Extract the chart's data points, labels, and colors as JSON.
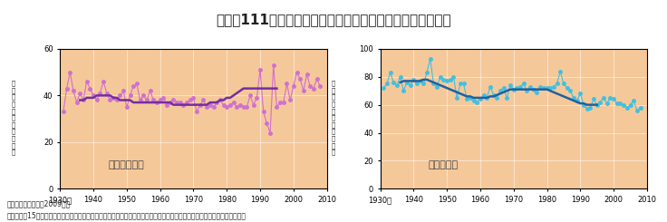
{
  "title": "図３－111　我が国における真夏日等の年間日数の経年変化",
  "title_bg": "#f4a0a0",
  "plot_bg": "#f5c89a",
  "fig_bg": "#ffffff",
  "left_label": "真夏日の日数",
  "right_label": "冬日の日数",
  "ylabel": "１\n地\n点\n当\n た\n り\n の\n 年\n 間\n 日\n 数",
  "left_ylim": [
    0,
    60
  ],
  "left_yticks": [
    0,
    20,
    40,
    60
  ],
  "right_ylim": [
    0,
    100
  ],
  "right_yticks": [
    0,
    20,
    40,
    60,
    80,
    100
  ],
  "xlim": [
    1930,
    2010
  ],
  "xticks": [
    1930,
    1940,
    1950,
    1960,
    1970,
    1980,
    1990,
    2000,
    2010
  ],
  "xtick_labels": [
    "1930年",
    "1940",
    "1950",
    "1960",
    "1970",
    "1980",
    "1990",
    "2000",
    "2010"
  ],
  "source_text": "資料：気象庁調べ（2009年）\n　注：国内15地点（網走、根室、寿都、山形、石巻、伏木、長野、水戸、銚子、境、浜田、彦根、多度津、名瀬、石垣島）の\n　　　出現日数から求めた１地点当たりの年間日数。細線は年々の値を、太線は11年移動平均値。",
  "summer_years": [
    1931,
    1932,
    1933,
    1934,
    1935,
    1936,
    1937,
    1938,
    1939,
    1940,
    1941,
    1942,
    1943,
    1944,
    1945,
    1946,
    1947,
    1948,
    1949,
    1950,
    1951,
    1952,
    1953,
    1954,
    1955,
    1956,
    1957,
    1958,
    1959,
    1960,
    1961,
    1962,
    1963,
    1964,
    1965,
    1966,
    1967,
    1968,
    1969,
    1970,
    1971,
    1972,
    1973,
    1974,
    1975,
    1976,
    1977,
    1978,
    1979,
    1980,
    1981,
    1982,
    1983,
    1984,
    1985,
    1986,
    1987,
    1988,
    1989,
    1990,
    1991,
    1992,
    1993,
    1994,
    1995,
    1996,
    1997,
    1998,
    1999,
    2000,
    2001,
    2002,
    2003,
    2004,
    2005,
    2006,
    2007,
    2008
  ],
  "summer_values": [
    33,
    43,
    50,
    42,
    37,
    41,
    38,
    46,
    43,
    40,
    38,
    41,
    46,
    41,
    38,
    39,
    38,
    40,
    42,
    35,
    40,
    44,
    45,
    38,
    40,
    38,
    42,
    38,
    37,
    38,
    39,
    36,
    37,
    38,
    37,
    37,
    36,
    37,
    38,
    39,
    33,
    36,
    38,
    35,
    36,
    35,
    37,
    38,
    36,
    35,
    36,
    37,
    35,
    36,
    35,
    35,
    40,
    36,
    39,
    51,
    33,
    28,
    24,
    53,
    35,
    37,
    37,
    45,
    38,
    44,
    50,
    47,
    42,
    49,
    44,
    43,
    47,
    44
  ],
  "summer_smooth": [
    38,
    38,
    39,
    39,
    39,
    40,
    40,
    40,
    40,
    40,
    39,
    39,
    38,
    38,
    38,
    38,
    37,
    37,
    37,
    37,
    37,
    37,
    37,
    37,
    37,
    37,
    37,
    37,
    36,
    36,
    36,
    36,
    36,
    36,
    36,
    36,
    36,
    36,
    36,
    37,
    37,
    37,
    38,
    38,
    39,
    39,
    40,
    41,
    42,
    43,
    43,
    43,
    43,
    43,
    43,
    43,
    43,
    43,
    43,
    43
  ],
  "winter_years": [
    1931,
    1932,
    1933,
    1934,
    1935,
    1936,
    1937,
    1938,
    1939,
    1940,
    1941,
    1942,
    1943,
    1944,
    1945,
    1946,
    1947,
    1948,
    1949,
    1950,
    1951,
    1952,
    1953,
    1954,
    1955,
    1956,
    1957,
    1958,
    1959,
    1960,
    1961,
    1962,
    1963,
    1964,
    1965,
    1966,
    1967,
    1968,
    1969,
    1970,
    1971,
    1972,
    1973,
    1974,
    1975,
    1976,
    1977,
    1978,
    1979,
    1980,
    1981,
    1982,
    1983,
    1984,
    1985,
    1986,
    1987,
    1988,
    1989,
    1990,
    1991,
    1992,
    1993,
    1994,
    1995,
    1996,
    1997,
    1998,
    1999,
    2000,
    2001,
    2002,
    2003,
    2004,
    2005,
    2006,
    2007,
    2008
  ],
  "winter_values": [
    72,
    75,
    83,
    76,
    74,
    80,
    70,
    76,
    74,
    78,
    75,
    77,
    75,
    83,
    93,
    75,
    73,
    80,
    78,
    77,
    78,
    80,
    65,
    75,
    75,
    64,
    65,
    63,
    62,
    64,
    67,
    65,
    73,
    67,
    65,
    70,
    72,
    65,
    74,
    71,
    72,
    73,
    75,
    70,
    73,
    71,
    69,
    73,
    72,
    72,
    72,
    73,
    75,
    84,
    75,
    72,
    70,
    65,
    63,
    68,
    60,
    57,
    58,
    64,
    60,
    62,
    65,
    61,
    65,
    64,
    61,
    61,
    60,
    58,
    60,
    63,
    56,
    58
  ],
  "winter_smooth": [
    76,
    77,
    77,
    77,
    77,
    77,
    77,
    78,
    78,
    77,
    76,
    75,
    74,
    73,
    72,
    71,
    70,
    69,
    68,
    67,
    66,
    66,
    65,
    65,
    65,
    65,
    65,
    66,
    66,
    67,
    68,
    69,
    70,
    71,
    71,
    71,
    71,
    71,
    71,
    71,
    71,
    71,
    71,
    71,
    71,
    70,
    69,
    68,
    67,
    66,
    65,
    64,
    63,
    62,
    61,
    61,
    60,
    60,
    60,
    60
  ],
  "summer_line_color": "#d070d0",
  "summer_smooth_color": "#7030a0",
  "winter_line_color": "#40c0e0",
  "winter_smooth_color": "#2060a0"
}
